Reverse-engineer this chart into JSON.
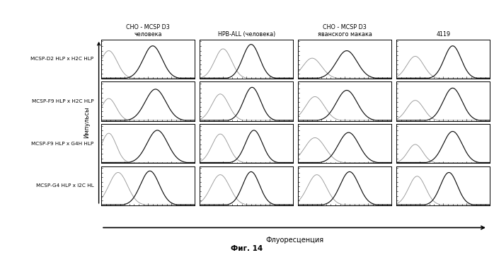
{
  "col_titles": [
    "CHO - MCSP D3\nчеловека",
    "HPB-ALL (человека)",
    "CHO - MCSP D3\nяванского макака",
    "4119"
  ],
  "row_labels": [
    "MCSP-D2 HLP x H2C HLP",
    "MCSP-F9 HLP x H2C HLP",
    "MCSP-F9 HLP x G4H HLP",
    "MCSP-G4 HLP x I2C HL"
  ],
  "ylabel": "Импульсы",
  "xlabel": "Флуоресценция",
  "fig_label": "Фиг. 14",
  "background": "#ffffff",
  "nrows": 4,
  "ncols": 4,
  "plots": [
    [
      {
        "gray": [
          0.08,
          0.75,
          0.09
        ],
        "black": [
          0.55,
          0.88,
          0.1
        ]
      },
      {
        "gray": [
          0.25,
          0.8,
          0.09
        ],
        "black": [
          0.55,
          0.92,
          0.09
        ]
      },
      {
        "gray": [
          0.15,
          0.55,
          0.1
        ],
        "black": [
          0.52,
          0.75,
          0.11
        ]
      },
      {
        "gray": [
          0.2,
          0.6,
          0.09
        ],
        "black": [
          0.6,
          0.88,
          0.09
        ]
      }
    ],
    [
      {
        "gray": [
          0.08,
          0.6,
          0.08
        ],
        "black": [
          0.58,
          0.85,
          0.11
        ]
      },
      {
        "gray": [
          0.22,
          0.72,
          0.09
        ],
        "black": [
          0.56,
          0.9,
          0.09
        ]
      },
      {
        "gray": [
          0.18,
          0.65,
          0.1
        ],
        "black": [
          0.52,
          0.82,
          0.11
        ]
      },
      {
        "gray": [
          0.2,
          0.55,
          0.09
        ],
        "black": [
          0.6,
          0.88,
          0.1
        ]
      }
    ],
    [
      {
        "gray": [
          0.08,
          0.8,
          0.08
        ],
        "black": [
          0.6,
          0.88,
          0.11
        ]
      },
      {
        "gray": [
          0.22,
          0.78,
          0.09
        ],
        "black": [
          0.58,
          0.88,
          0.09
        ]
      },
      {
        "gray": [
          0.18,
          0.68,
          0.11
        ],
        "black": [
          0.54,
          0.82,
          0.11
        ]
      },
      {
        "gray": [
          0.2,
          0.5,
          0.08
        ],
        "black": [
          0.6,
          0.85,
          0.1
        ]
      }
    ],
    [
      {
        "gray": [
          0.18,
          0.88,
          0.1
        ],
        "black": [
          0.52,
          0.92,
          0.1
        ]
      },
      {
        "gray": [
          0.22,
          0.82,
          0.1
        ],
        "black": [
          0.55,
          0.9,
          0.09
        ]
      },
      {
        "gray": [
          0.2,
          0.82,
          0.1
        ],
        "black": [
          0.55,
          0.9,
          0.1
        ]
      },
      {
        "gray": [
          0.22,
          0.78,
          0.09
        ],
        "black": [
          0.56,
          0.88,
          0.09
        ]
      }
    ]
  ]
}
